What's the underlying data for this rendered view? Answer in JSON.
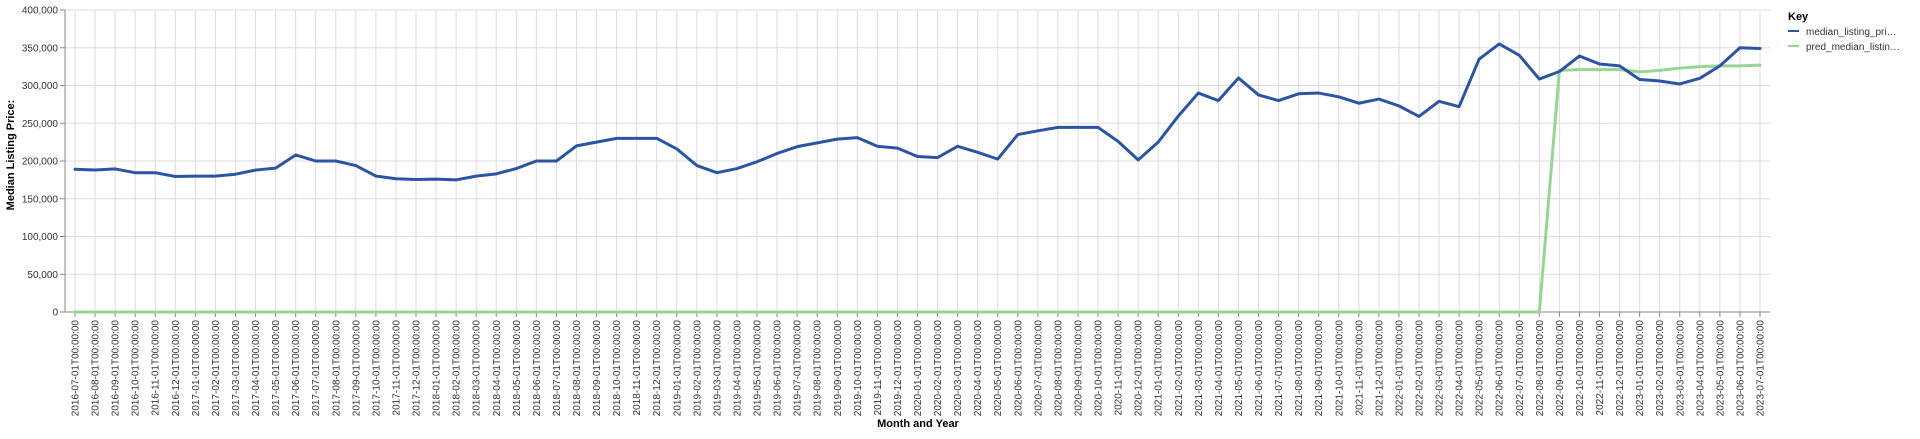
{
  "chart_data": {
    "type": "line",
    "xlabel": "Month and Year",
    "ylabel": "Median Listing Price:",
    "ylim": [
      0,
      400000
    ],
    "yticks": [
      0,
      50000,
      100000,
      150000,
      200000,
      250000,
      300000,
      350000,
      400000
    ],
    "ytick_labels": [
      "0",
      "50,000",
      "100,000",
      "150,000",
      "200,000",
      "250,000",
      "300,000",
      "350,000",
      "400,000"
    ],
    "grid": true,
    "legend": {
      "title": "Key",
      "placement": "right",
      "entries": [
        "median_listing_pri…",
        "pred_median_listin…"
      ]
    },
    "x": [
      "2016-07-01T00:00:00",
      "2016-08-01T00:00:00",
      "2016-09-01T00:00:00",
      "2016-10-01T00:00:00",
      "2016-11-01T00:00:00",
      "2016-12-01T00:00:00",
      "2017-01-01T00:00:00",
      "2017-02-01T00:00:00",
      "2017-03-01T00:00:00",
      "2017-04-01T00:00:00",
      "2017-05-01T00:00:00",
      "2017-06-01T00:00:00",
      "2017-07-01T00:00:00",
      "2017-08-01T00:00:00",
      "2017-09-01T00:00:00",
      "2017-10-01T00:00:00",
      "2017-11-01T00:00:00",
      "2017-12-01T00:00:00",
      "2018-01-01T00:00:00",
      "2018-02-01T00:00:00",
      "2018-03-01T00:00:00",
      "2018-04-01T00:00:00",
      "2018-05-01T00:00:00",
      "2018-06-01T00:00:00",
      "2018-07-01T00:00:00",
      "2018-08-01T00:00:00",
      "2018-09-01T00:00:00",
      "2018-10-01T00:00:00",
      "2018-11-01T00:00:00",
      "2018-12-01T00:00:00",
      "2019-01-01T00:00:00",
      "2019-02-01T00:00:00",
      "2019-03-01T00:00:00",
      "2019-04-01T00:00:00",
      "2019-05-01T00:00:00",
      "2019-06-01T00:00:00",
      "2019-07-01T00:00:00",
      "2019-08-01T00:00:00",
      "2019-09-01T00:00:00",
      "2019-10-01T00:00:00",
      "2019-11-01T00:00:00",
      "2019-12-01T00:00:00",
      "2020-01-01T00:00:00",
      "2020-02-01T00:00:00",
      "2020-03-01T00:00:00",
      "2020-04-01T00:00:00",
      "2020-05-01T00:00:00",
      "2020-06-01T00:00:00",
      "2020-07-01T00:00:00",
      "2020-08-01T00:00:00",
      "2020-09-01T00:00:00",
      "2020-10-01T00:00:00",
      "2020-11-01T00:00:00",
      "2020-12-01T00:00:00",
      "2021-01-01T00:00:00",
      "2021-02-01T00:00:00",
      "2021-03-01T00:00:00",
      "2021-04-01T00:00:00",
      "2021-05-01T00:00:00",
      "2021-06-01T00:00:00",
      "2021-07-01T00:00:00",
      "2021-08-01T00:00:00",
      "2021-09-01T00:00:00",
      "2021-10-01T00:00:00",
      "2021-11-01T00:00:00",
      "2021-12-01T00:00:00",
      "2022-01-01T00:00:00",
      "2022-02-01T00:00:00",
      "2022-03-01T00:00:00",
      "2022-04-01T00:00:00",
      "2022-05-01T00:00:00",
      "2022-06-01T00:00:00",
      "2022-07-01T00:00:00",
      "2022-08-01T00:00:00",
      "2022-09-01T00:00:00",
      "2022-10-01T00:00:00",
      "2022-11-01T00:00:00",
      "2022-12-01T00:00:00",
      "2023-01-01T00:00:00",
      "2023-02-01T00:00:00",
      "2023-03-01T00:00:00",
      "2023-04-01T00:00:00",
      "2023-05-01T00:00:00",
      "2023-06-01T00:00:00",
      "2023-07-01T00:00:00"
    ],
    "series": [
      {
        "name": "median_listing_pri…",
        "color": "#2b55a3",
        "values": [
          189000,
          188000,
          189500,
          184500,
          184500,
          179500,
          180000,
          180000,
          182500,
          188000,
          190500,
          208000,
          200000,
          200000,
          194000,
          180000,
          176500,
          175500,
          176000,
          175000,
          180000,
          183000,
          190000,
          200000,
          200000,
          220000,
          225000,
          230000,
          230000,
          230000,
          216000,
          194000,
          184500,
          190000,
          199000,
          210000,
          219000,
          224000,
          229000,
          231000,
          219500,
          217000,
          206000,
          204500,
          219500,
          211500,
          202500,
          235000,
          240000,
          244500,
          244500,
          244500,
          226000,
          201500,
          225000,
          259500,
          290000,
          280000,
          310000,
          287500,
          280000,
          289000,
          290000,
          285000,
          276500,
          282000,
          273000,
          259000,
          279000,
          272000,
          335000,
          355000,
          340000,
          308500,
          318500,
          339000,
          328500,
          326000,
          308000,
          306000,
          302000,
          309500,
          326000,
          350000,
          349000
        ]
      },
      {
        "name": "pred_median_listin…",
        "color": "#98d594",
        "values": [
          0,
          0,
          0,
          0,
          0,
          0,
          0,
          0,
          0,
          0,
          0,
          0,
          0,
          0,
          0,
          0,
          0,
          0,
          0,
          0,
          0,
          0,
          0,
          0,
          0,
          0,
          0,
          0,
          0,
          0,
          0,
          0,
          0,
          0,
          0,
          0,
          0,
          0,
          0,
          0,
          0,
          0,
          0,
          0,
          0,
          0,
          0,
          0,
          0,
          0,
          0,
          0,
          0,
          0,
          0,
          0,
          0,
          0,
          0,
          0,
          0,
          0,
          0,
          0,
          0,
          0,
          0,
          0,
          0,
          0,
          0,
          0,
          0,
          0,
          320000,
          321000,
          321000,
          321000,
          318000,
          320000,
          323000,
          325000,
          326000,
          326000,
          327000
        ]
      }
    ]
  }
}
